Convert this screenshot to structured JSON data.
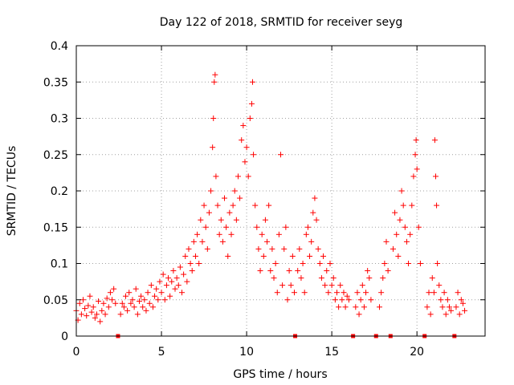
{
  "chart_data": {
    "type": "scatter",
    "title": "Day 122 of 2018, SRMTID for receiver seyg",
    "xlabel": "GPS time / hours",
    "ylabel": "SRMTID / TECUs",
    "xlim": [
      0,
      24
    ],
    "ylim": [
      0,
      0.4
    ],
    "x_ticks": [
      0,
      5,
      10,
      15,
      20
    ],
    "x_tick_labels": [
      "0",
      "5",
      "10",
      "15",
      "20"
    ],
    "y_ticks": [
      0,
      0.05,
      0.1,
      0.15,
      0.2,
      0.25,
      0.3,
      0.35,
      0.4
    ],
    "y_tick_labels": [
      "0",
      "0.05",
      "0.1",
      "0.15",
      "0.2",
      "0.25",
      "0.3",
      "0.35",
      "0.4"
    ],
    "grid": true,
    "marker": "+",
    "color": "#ff0000",
    "series": [
      {
        "name": "SRMTID",
        "points": [
          [
            0.0,
            0.035
          ],
          [
            0.1,
            0.022
          ],
          [
            0.2,
            0.045
          ],
          [
            0.3,
            0.03
          ],
          [
            0.4,
            0.05
          ],
          [
            0.5,
            0.038
          ],
          [
            0.6,
            0.028
          ],
          [
            0.7,
            0.042
          ],
          [
            0.8,
            0.055
          ],
          [
            0.9,
            0.033
          ],
          [
            1.0,
            0.04
          ],
          [
            1.1,
            0.025
          ],
          [
            1.2,
            0.03
          ],
          [
            1.3,
            0.048
          ],
          [
            1.4,
            0.02
          ],
          [
            1.5,
            0.035
          ],
          [
            1.6,
            0.045
          ],
          [
            1.7,
            0.03
          ],
          [
            1.8,
            0.052
          ],
          [
            1.9,
            0.04
          ],
          [
            2.0,
            0.06
          ],
          [
            2.1,
            0.05
          ],
          [
            2.2,
            0.065
          ],
          [
            2.3,
            0.045
          ],
          [
            2.6,
            0.03
          ],
          [
            2.7,
            0.045
          ],
          [
            2.8,
            0.04
          ],
          [
            2.9,
            0.055
          ],
          [
            3.0,
            0.035
          ],
          [
            3.1,
            0.06
          ],
          [
            3.2,
            0.045
          ],
          [
            3.3,
            0.05
          ],
          [
            3.4,
            0.04
          ],
          [
            3.5,
            0.065
          ],
          [
            3.6,
            0.03
          ],
          [
            3.7,
            0.048
          ],
          [
            3.8,
            0.055
          ],
          [
            3.9,
            0.04
          ],
          [
            4.0,
            0.05
          ],
          [
            4.1,
            0.035
          ],
          [
            4.2,
            0.06
          ],
          [
            4.3,
            0.045
          ],
          [
            4.4,
            0.07
          ],
          [
            4.5,
            0.04
          ],
          [
            4.6,
            0.055
          ],
          [
            4.7,
            0.065
          ],
          [
            4.8,
            0.05
          ],
          [
            4.9,
            0.075
          ],
          [
            5.0,
            0.06
          ],
          [
            5.1,
            0.085
          ],
          [
            5.2,
            0.05
          ],
          [
            5.3,
            0.07
          ],
          [
            5.4,
            0.08
          ],
          [
            5.5,
            0.055
          ],
          [
            5.6,
            0.075
          ],
          [
            5.7,
            0.09
          ],
          [
            5.8,
            0.065
          ],
          [
            5.9,
            0.08
          ],
          [
            6.0,
            0.07
          ],
          [
            6.1,
            0.095
          ],
          [
            6.2,
            0.06
          ],
          [
            6.3,
            0.085
          ],
          [
            6.4,
            0.11
          ],
          [
            6.5,
            0.075
          ],
          [
            6.6,
            0.12
          ],
          [
            6.7,
            0.1
          ],
          [
            6.8,
            0.09
          ],
          [
            6.9,
            0.13
          ],
          [
            7.0,
            0.11
          ],
          [
            7.1,
            0.14
          ],
          [
            7.2,
            0.1
          ],
          [
            7.3,
            0.16
          ],
          [
            7.4,
            0.13
          ],
          [
            7.5,
            0.18
          ],
          [
            7.6,
            0.15
          ],
          [
            7.7,
            0.12
          ],
          [
            7.8,
            0.17
          ],
          [
            7.9,
            0.2
          ],
          [
            8.0,
            0.26
          ],
          [
            8.05,
            0.3
          ],
          [
            8.1,
            0.35
          ],
          [
            8.15,
            0.36
          ],
          [
            8.2,
            0.22
          ],
          [
            8.3,
            0.18
          ],
          [
            8.4,
            0.14
          ],
          [
            8.5,
            0.16
          ],
          [
            8.6,
            0.13
          ],
          [
            8.7,
            0.19
          ],
          [
            8.8,
            0.15
          ],
          [
            8.9,
            0.11
          ],
          [
            9.0,
            0.17
          ],
          [
            9.1,
            0.14
          ],
          [
            9.2,
            0.18
          ],
          [
            9.3,
            0.2
          ],
          [
            9.4,
            0.16
          ],
          [
            9.5,
            0.22
          ],
          [
            9.6,
            0.19
          ],
          [
            9.7,
            0.27
          ],
          [
            9.8,
            0.29
          ],
          [
            9.9,
            0.24
          ],
          [
            10.0,
            0.26
          ],
          [
            10.1,
            0.22
          ],
          [
            10.2,
            0.3
          ],
          [
            10.3,
            0.32
          ],
          [
            10.35,
            0.35
          ],
          [
            10.4,
            0.25
          ],
          [
            10.5,
            0.18
          ],
          [
            10.6,
            0.15
          ],
          [
            10.7,
            0.12
          ],
          [
            10.8,
            0.09
          ],
          [
            10.9,
            0.14
          ],
          [
            11.0,
            0.11
          ],
          [
            11.1,
            0.16
          ],
          [
            11.2,
            0.13
          ],
          [
            11.3,
            0.18
          ],
          [
            11.4,
            0.09
          ],
          [
            11.5,
            0.12
          ],
          [
            11.6,
            0.08
          ],
          [
            11.7,
            0.1
          ],
          [
            11.8,
            0.06
          ],
          [
            11.9,
            0.14
          ],
          [
            12.0,
            0.25
          ],
          [
            12.1,
            0.07
          ],
          [
            12.2,
            0.12
          ],
          [
            12.3,
            0.15
          ],
          [
            12.4,
            0.05
          ],
          [
            12.5,
            0.09
          ],
          [
            12.6,
            0.07
          ],
          [
            12.7,
            0.11
          ],
          [
            12.8,
            0.06
          ],
          [
            13.0,
            0.09
          ],
          [
            13.1,
            0.12
          ],
          [
            13.2,
            0.08
          ],
          [
            13.3,
            0.1
          ],
          [
            13.4,
            0.06
          ],
          [
            13.5,
            0.14
          ],
          [
            13.6,
            0.15
          ],
          [
            13.7,
            0.11
          ],
          [
            13.8,
            0.13
          ],
          [
            13.9,
            0.17
          ],
          [
            14.0,
            0.19
          ],
          [
            14.1,
            0.16
          ],
          [
            14.2,
            0.12
          ],
          [
            14.3,
            0.1
          ],
          [
            14.4,
            0.08
          ],
          [
            14.5,
            0.11
          ],
          [
            14.6,
            0.07
          ],
          [
            14.7,
            0.09
          ],
          [
            14.8,
            0.06
          ],
          [
            14.9,
            0.1
          ],
          [
            15.0,
            0.07
          ],
          [
            15.1,
            0.08
          ],
          [
            15.2,
            0.05
          ],
          [
            15.3,
            0.06
          ],
          [
            15.4,
            0.04
          ],
          [
            15.5,
            0.07
          ],
          [
            15.6,
            0.05
          ],
          [
            15.7,
            0.06
          ],
          [
            15.8,
            0.04
          ],
          [
            15.9,
            0.055
          ],
          [
            16.0,
            0.05
          ],
          [
            16.4,
            0.04
          ],
          [
            16.5,
            0.06
          ],
          [
            16.6,
            0.03
          ],
          [
            16.7,
            0.05
          ],
          [
            16.8,
            0.07
          ],
          [
            16.9,
            0.04
          ],
          [
            17.0,
            0.06
          ],
          [
            17.1,
            0.09
          ],
          [
            17.2,
            0.08
          ],
          [
            17.3,
            0.05
          ],
          [
            17.8,
            0.04
          ],
          [
            17.9,
            0.06
          ],
          [
            18.0,
            0.08
          ],
          [
            18.1,
            0.1
          ],
          [
            18.2,
            0.13
          ],
          [
            18.3,
            0.09
          ],
          [
            18.6,
            0.12
          ],
          [
            18.7,
            0.17
          ],
          [
            18.8,
            0.14
          ],
          [
            18.9,
            0.11
          ],
          [
            19.0,
            0.16
          ],
          [
            19.1,
            0.2
          ],
          [
            19.2,
            0.18
          ],
          [
            19.3,
            0.15
          ],
          [
            19.4,
            0.13
          ],
          [
            19.5,
            0.1
          ],
          [
            19.6,
            0.14
          ],
          [
            19.7,
            0.18
          ],
          [
            19.8,
            0.22
          ],
          [
            19.9,
            0.25
          ],
          [
            19.95,
            0.27
          ],
          [
            20.0,
            0.23
          ],
          [
            20.1,
            0.15
          ],
          [
            20.2,
            0.1
          ],
          [
            20.6,
            0.04
          ],
          [
            20.7,
            0.06
          ],
          [
            20.8,
            0.03
          ],
          [
            20.9,
            0.08
          ],
          [
            21.0,
            0.06
          ],
          [
            21.05,
            0.27
          ],
          [
            21.1,
            0.22
          ],
          [
            21.15,
            0.18
          ],
          [
            21.2,
            0.1
          ],
          [
            21.3,
            0.07
          ],
          [
            21.4,
            0.05
          ],
          [
            21.5,
            0.04
          ],
          [
            21.6,
            0.06
          ],
          [
            21.7,
            0.03
          ],
          [
            21.8,
            0.05
          ],
          [
            21.9,
            0.04
          ],
          [
            22.0,
            0.035
          ],
          [
            22.3,
            0.04
          ],
          [
            22.4,
            0.06
          ],
          [
            22.5,
            0.03
          ],
          [
            22.6,
            0.05
          ],
          [
            22.7,
            0.045
          ],
          [
            22.8,
            0.035
          ]
        ]
      }
    ],
    "gap_markers_x": [
      2.45,
      12.85,
      16.25,
      17.6,
      18.45,
      20.45,
      22.2
    ]
  }
}
